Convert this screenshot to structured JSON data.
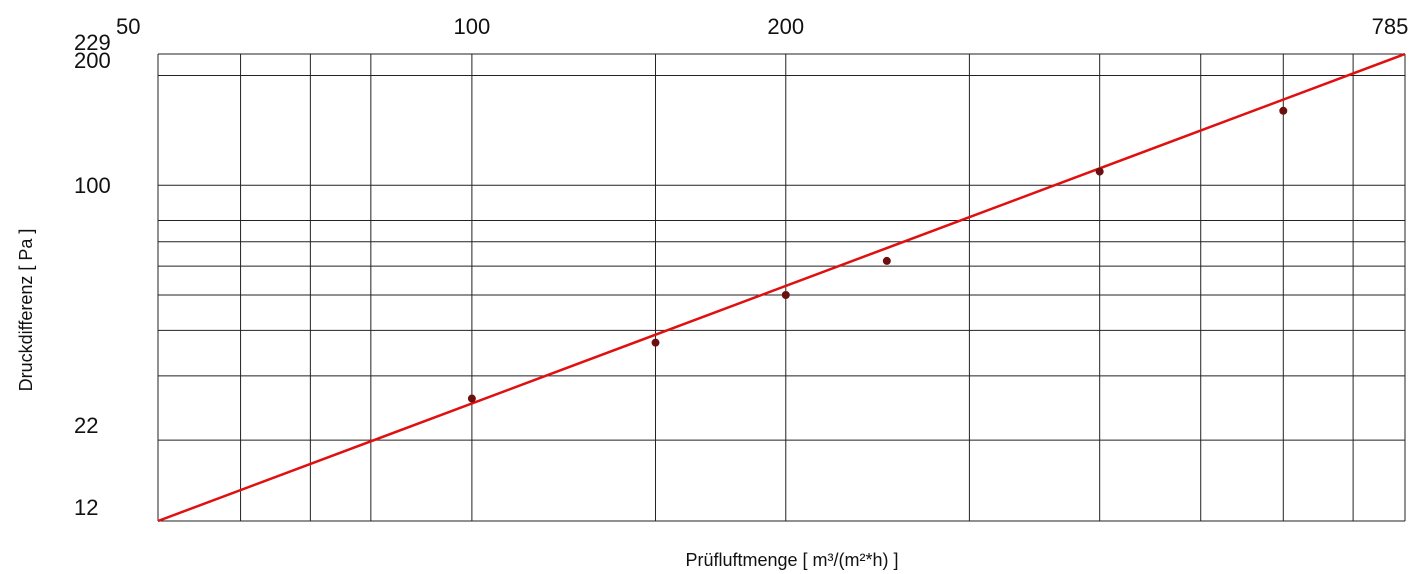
{
  "chart_data": {
    "type": "line",
    "title": "",
    "xlabel": "Prüfluftmenge [  m³/(m²*h)  ]",
    "ylabel": "Druckdifferenz  [  Pa  ]",
    "x_scale": "log",
    "y_scale": "log",
    "xlim": [
      50,
      785
    ],
    "ylim": [
      12,
      229
    ],
    "x_tick_labels": [
      {
        "value": 50,
        "label": "50"
      },
      {
        "value": 100,
        "label": "100"
      },
      {
        "value": 200,
        "label": "200"
      },
      {
        "value": 785,
        "label": "785"
      }
    ],
    "y_tick_labels": [
      {
        "value": 12,
        "label": "12"
      },
      {
        "value": 22,
        "label": "22"
      },
      {
        "value": 100,
        "label": "100"
      },
      {
        "value": 200,
        "label": "200"
      },
      {
        "value": 229,
        "label": "229"
      }
    ],
    "x_gridlines": [
      50,
      60,
      70,
      80,
      100,
      150,
      200,
      300,
      400,
      500,
      600,
      700,
      785
    ],
    "y_gridlines": [
      20,
      30,
      40,
      50,
      60,
      70,
      80,
      100,
      200,
      229
    ],
    "grid": true,
    "series": [
      {
        "line": [
          [
            50,
            12
          ],
          [
            785,
            229
          ]
        ],
        "points": [
          [
            100,
            26
          ],
          [
            150,
            37
          ],
          [
            200,
            50
          ],
          [
            250,
            62
          ],
          [
            400,
            109
          ],
          [
            600,
            160
          ]
        ],
        "line_color": "#e01010",
        "point_color": "#6e0f0f"
      }
    ]
  }
}
